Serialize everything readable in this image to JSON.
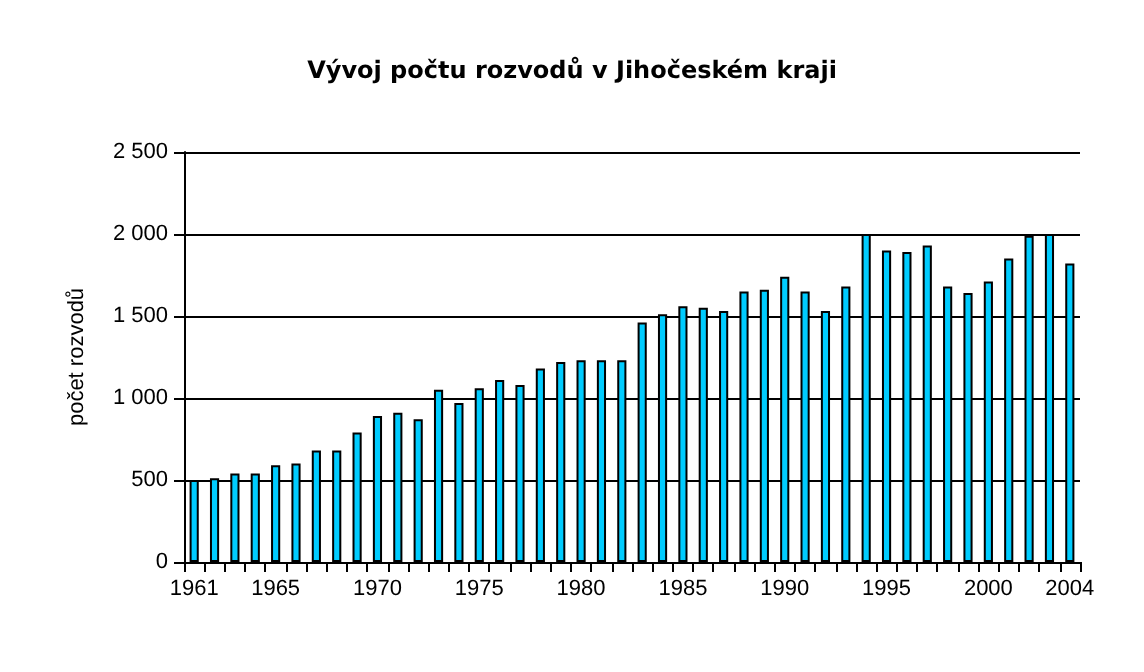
{
  "chart_data": {
    "type": "bar",
    "title": "Vývoj počtu rozvodů v Jihočeském kraji",
    "ylabel": "počet rozvodů",
    "categories": [
      "1961",
      null,
      null,
      null,
      "1965",
      null,
      null,
      null,
      null,
      "1970",
      null,
      null,
      null,
      null,
      "1975",
      null,
      null,
      null,
      null,
      "1980",
      null,
      null,
      null,
      null,
      "1985",
      null,
      null,
      null,
      null,
      "1990",
      null,
      null,
      null,
      null,
      "1995",
      null,
      null,
      null,
      null,
      "2000",
      null,
      null,
      null,
      "2004"
    ],
    "series": [
      {
        "color": "#00ccff",
        "values": [
          500,
          510,
          540,
          540,
          590,
          600,
          680,
          680,
          790,
          890,
          910,
          870,
          1050,
          970,
          1060,
          1110,
          1080,
          1180,
          1220,
          1230,
          1230,
          1230,
          1460,
          1510,
          1560,
          1550,
          1530,
          1650,
          1660,
          1740,
          1650,
          1530,
          1680,
          2000,
          1900,
          1890,
          1930,
          1680,
          1640,
          1710,
          1850,
          1990,
          2000,
          1820
        ]
      }
    ],
    "ylim": [
      0,
      2500
    ],
    "yticks": [
      0,
      500,
      {
        "value": 1000,
        "label": "1 000"
      },
      {
        "value": 1500,
        "label": "1 500"
      },
      {
        "value": 2000,
        "label": "2 000"
      },
      {
        "value": 2500,
        "label": "2 500"
      }
    ],
    "grid": "y"
  }
}
